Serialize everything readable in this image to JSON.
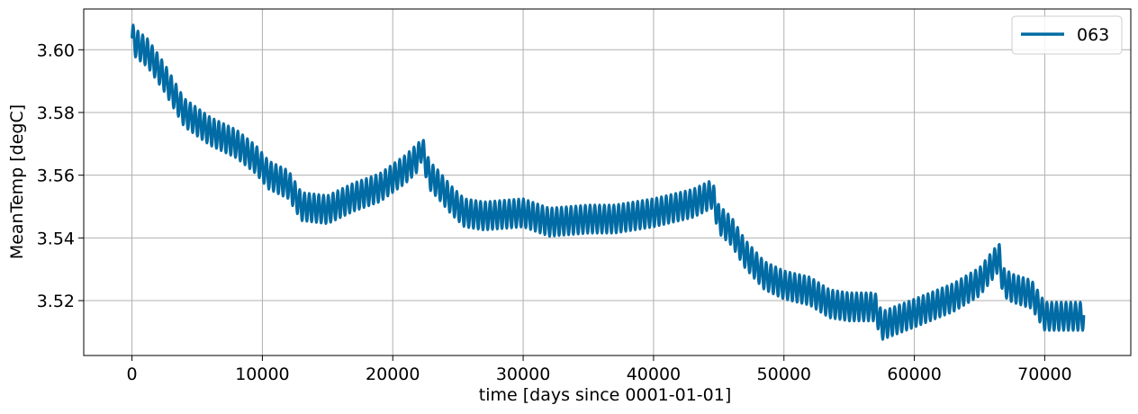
{
  "chart_data": {
    "type": "line",
    "title": "",
    "xlabel": "time [days since 0001-01-01]",
    "ylabel": "MeanTemp [degC]",
    "xlim": [
      -3700,
      76600
    ],
    "ylim": [
      3.5025,
      3.613
    ],
    "xticks": [
      0,
      10000,
      20000,
      30000,
      40000,
      50000,
      60000,
      70000
    ],
    "xtick_labels": [
      "0",
      "10000",
      "20000",
      "30000",
      "40000",
      "50000",
      "60000",
      "70000"
    ],
    "yticks": [
      3.52,
      3.54,
      3.56,
      3.58,
      3.6
    ],
    "ytick_labels": [
      "3.52",
      "3.54",
      "3.56",
      "3.58",
      "3.60"
    ],
    "grid": true,
    "legend": "top-right",
    "oscillation_period_days": 365,
    "oscillation_amplitude": 0.0045,
    "series": [
      {
        "name": "063",
        "color": "#006ba4",
        "x": [
          0,
          300,
          1200,
          2500,
          4000,
          6000,
          8000,
          9500,
          10500,
          12000,
          13000,
          15000,
          17000,
          19000,
          21000,
          22000,
          22200,
          22800,
          23500,
          24500,
          25500,
          27000,
          30000,
          32000,
          35000,
          37000,
          40000,
          43000,
          44500,
          45000,
          46000,
          47000,
          48500,
          50000,
          52000,
          53500,
          55000,
          57000,
          57500,
          60000,
          63000,
          65000,
          66500,
          66800,
          67500,
          69000,
          70000,
          73000
        ],
        "y": [
          3.604,
          3.602,
          3.599,
          3.591,
          3.58,
          3.574,
          3.57,
          3.565,
          3.56,
          3.557,
          3.55,
          3.549,
          3.553,
          3.556,
          3.562,
          3.566,
          3.569,
          3.56,
          3.557,
          3.552,
          3.548,
          3.547,
          3.548,
          3.545,
          3.546,
          3.546,
          3.548,
          3.551,
          3.554,
          3.546,
          3.542,
          3.535,
          3.528,
          3.525,
          3.523,
          3.519,
          3.518,
          3.518,
          3.512,
          3.516,
          3.521,
          3.526,
          3.534,
          3.526,
          3.524,
          3.522,
          3.515,
          3.515
        ]
      }
    ]
  }
}
